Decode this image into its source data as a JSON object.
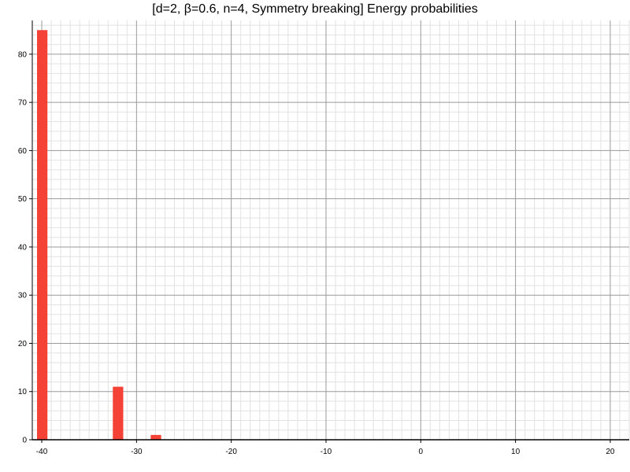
{
  "chart_data": {
    "type": "bar",
    "title": "[d=2, β=0.6, n=4, Symmetry breaking] Energy probabilities",
    "xlabel": "",
    "ylabel": "",
    "xlim": [
      -41,
      22
    ],
    "ylim": [
      0,
      87
    ],
    "x_ticks": [
      -40,
      -30,
      -20,
      -10,
      0,
      10,
      20
    ],
    "y_ticks": [
      0,
      10,
      20,
      30,
      40,
      50,
      60,
      70,
      80
    ],
    "grid": true,
    "bars": [
      {
        "x": -40,
        "value": 85
      },
      {
        "x": -32,
        "value": 11
      },
      {
        "x": -28,
        "value": 1
      }
    ],
    "bar_color": "#f44336"
  }
}
